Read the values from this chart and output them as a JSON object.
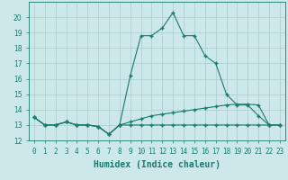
{
  "xlabel": "Humidex (Indice chaleur)",
  "x": [
    0,
    1,
    2,
    3,
    4,
    5,
    6,
    7,
    8,
    9,
    10,
    11,
    12,
    13,
    14,
    15,
    16,
    17,
    18,
    19,
    20,
    21,
    22,
    23
  ],
  "line1": [
    13.5,
    13.0,
    13.0,
    13.2,
    13.0,
    13.0,
    12.9,
    12.4,
    13.0,
    16.2,
    18.8,
    18.8,
    19.3,
    20.3,
    18.8,
    18.8,
    17.5,
    17.0,
    15.0,
    14.3,
    14.3,
    13.6,
    13.0,
    13.0
  ],
  "line2": [
    13.5,
    13.0,
    13.0,
    13.2,
    13.0,
    13.0,
    12.9,
    12.4,
    13.0,
    13.2,
    13.4,
    13.6,
    13.7,
    13.8,
    13.9,
    14.0,
    14.1,
    14.2,
    14.3,
    14.35,
    14.35,
    14.3,
    13.0,
    13.0
  ],
  "line3": [
    13.5,
    13.0,
    13.0,
    13.2,
    13.0,
    13.0,
    12.9,
    12.4,
    13.0,
    13.0,
    13.0,
    13.0,
    13.0,
    13.0,
    13.0,
    13.0,
    13.0,
    13.0,
    13.0,
    13.0,
    13.0,
    13.0,
    13.0,
    13.0
  ],
  "line_color": "#1a7a6e",
  "bg_color": "#cce8e8",
  "grid_color": "#aacccc",
  "ylim": [
    12,
    21
  ],
  "xlim": [
    -0.5,
    23.5
  ],
  "yticks": [
    12,
    13,
    14,
    15,
    16,
    17,
    18,
    19,
    20
  ],
  "xtick_labels": [
    "0",
    "1",
    "2",
    "3",
    "4",
    "5",
    "6",
    "7",
    "8",
    "9",
    "10",
    "11",
    "12",
    "13",
    "14",
    "15",
    "16",
    "17",
    "18",
    "19",
    "20",
    "21",
    "22",
    "23"
  ],
  "marker": "+",
  "markersize": 3.5,
  "linewidth": 0.8,
  "tick_fontsize": 5.5,
  "xlabel_fontsize": 7.0
}
